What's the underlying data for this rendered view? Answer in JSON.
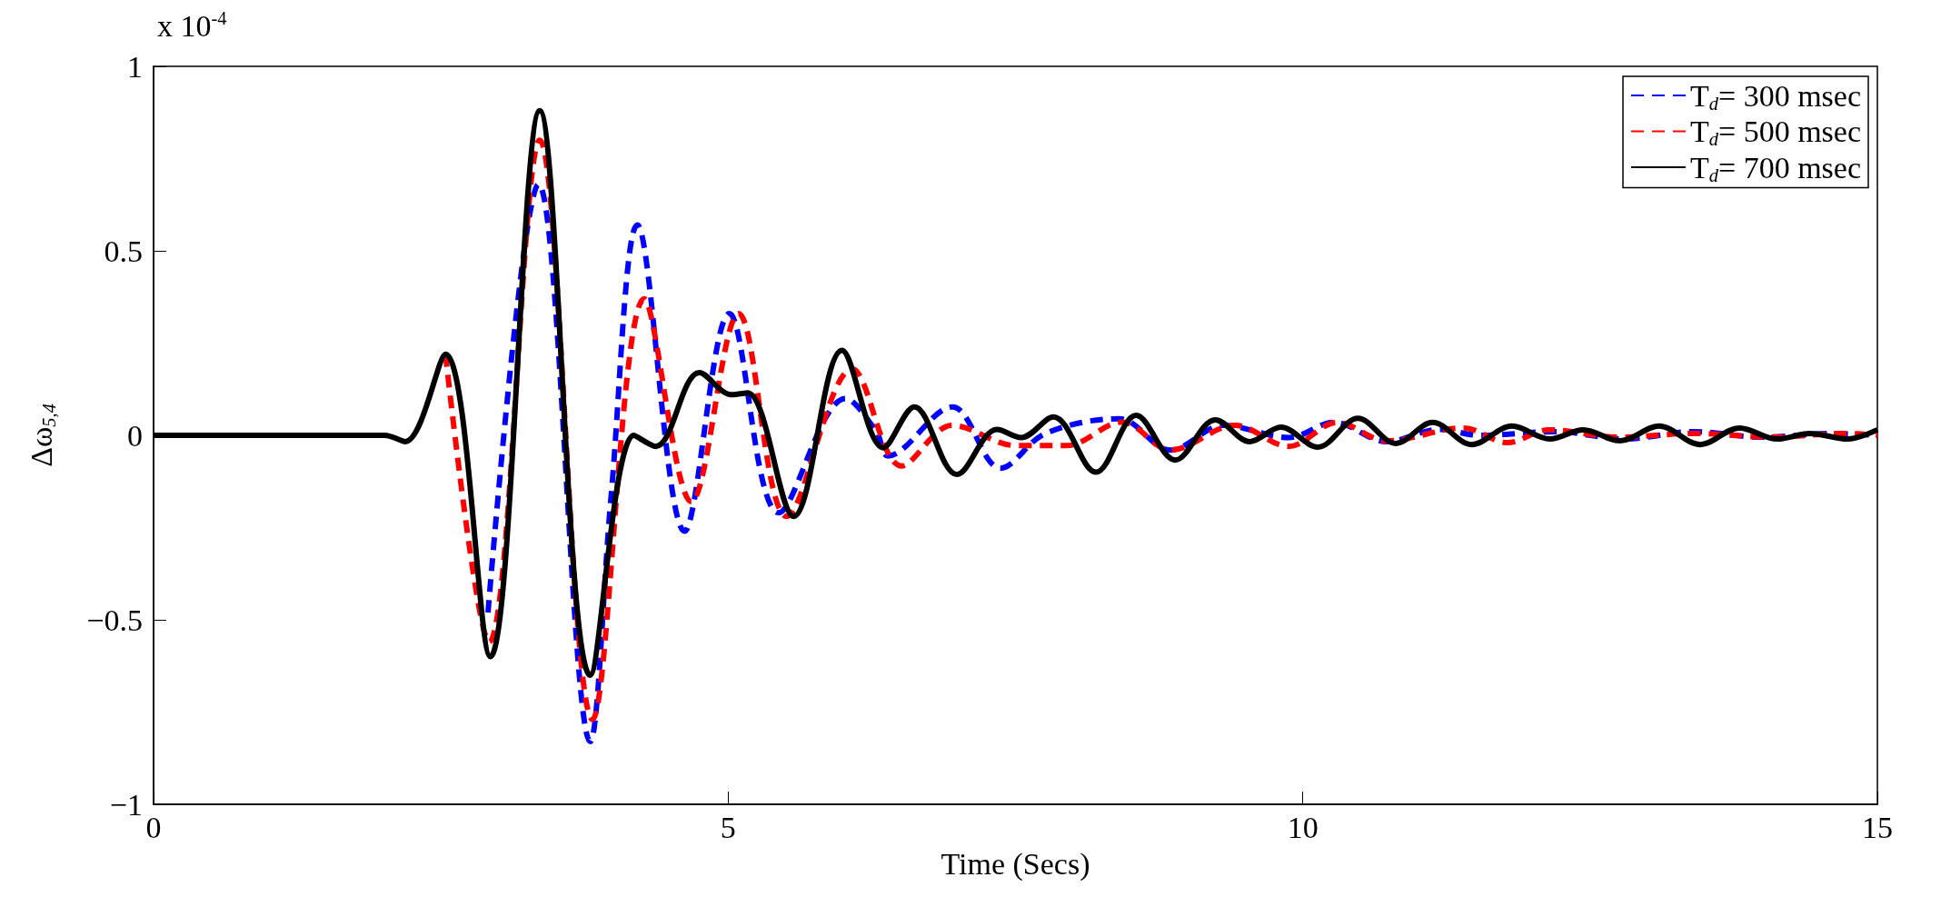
{
  "chart_data": {
    "type": "line",
    "xlabel": "Time (Secs)",
    "ylabel": "Δω$_{5,4}$",
    "annotations": [
      "x 10$^{-4}$"
    ],
    "xlim": [
      0,
      15
    ],
    "xticks": [
      0,
      5,
      10,
      15
    ],
    "ylim": [
      -1,
      1
    ],
    "yticks": [
      -1,
      -0.5,
      0,
      0.5,
      1
    ],
    "grid": false,
    "legend": "top right",
    "marker": "none",
    "series": [
      {
        "name": "T$_{d}$= 300 msec",
        "color": "#0000ff",
        "line_style": "dashed",
        "x": [
          2.91,
          3.35,
          3.8,
          3.98,
          4.21,
          4.62,
          5.01,
          5.44,
          6.02,
          6.29,
          6.39,
          6.95,
          7.37,
          7.76,
          8.4,
          8.85,
          9.31,
          9.88,
          10.27,
          10.73,
          11.19,
          11.54,
          12.2,
          12.8,
          13.4,
          14.0,
          14.6,
          15
        ],
        "values": [
          -0.48,
          0.68,
          -0.83,
          -0.17,
          0.57,
          -0.26,
          0.33,
          -0.21,
          0.1,
          0.01,
          -0.056,
          0.077,
          -0.089,
          0.005,
          0.045,
          -0.04,
          0.027,
          -0.006,
          0.035,
          -0.017,
          0.016,
          0,
          0.01,
          -0.01,
          0.01,
          -0.005,
          0.005,
          0
        ]
      },
      {
        "name": "T$_{d}$= 500 msec",
        "color": "#ff0000",
        "line_style": "dashed",
        "x": [
          2.54,
          2.92,
          3.36,
          3.82,
          4.27,
          4.68,
          5.09,
          5.51,
          6.08,
          6.51,
          6.95,
          7.51,
          7.94,
          8.43,
          8.85,
          9.41,
          9.88,
          10.3,
          10.73,
          11.4,
          11.78,
          12.14,
          12.75,
          13.4,
          14.1,
          14.7,
          15
        ],
        "values": [
          0.22,
          -0.56,
          0.8,
          -0.77,
          0.37,
          -0.18,
          0.33,
          -0.22,
          0.18,
          -0.083,
          0.027,
          -0.028,
          -0.028,
          0.036,
          -0.04,
          0.027,
          -0.03,
          0.035,
          -0.015,
          0.02,
          -0.02,
          0.015,
          -0.005,
          0.005,
          -0.005,
          0.005,
          0
        ]
      },
      {
        "name": "T$_{d}$= 700 msec",
        "color": "#000000",
        "line_style": "solid",
        "x": [
          0,
          2.01,
          2.19,
          2.54,
          2.93,
          3.36,
          3.8,
          4.18,
          4.37,
          4.75,
          5.03,
          5.17,
          5.57,
          5.99,
          6.35,
          6.62,
          6.99,
          7.34,
          7.55,
          7.83,
          8.2,
          8.55,
          8.89,
          9.24,
          9.54,
          9.81,
          10.13,
          10.48,
          10.81,
          11.13,
          11.47,
          11.82,
          12.15,
          12.44,
          12.76,
          13.1,
          13.46,
          13.8,
          14.13,
          14.41,
          14.74,
          15
        ],
        "values": [
          0,
          0,
          -0.017,
          0.22,
          -0.6,
          0.88,
          -0.65,
          0,
          -0.03,
          0.17,
          0.11,
          0.115,
          -0.22,
          0.23,
          -0.034,
          0.077,
          -0.106,
          0.016,
          -0.006,
          0.05,
          -0.1,
          0.054,
          -0.067,
          0.042,
          -0.017,
          0.022,
          -0.032,
          0.046,
          -0.022,
          0.035,
          -0.025,
          0.025,
          -0.01,
          0.015,
          -0.015,
          0.025,
          -0.025,
          0.02,
          -0.01,
          0.005,
          -0.01,
          0.015
        ]
      }
    ]
  }
}
